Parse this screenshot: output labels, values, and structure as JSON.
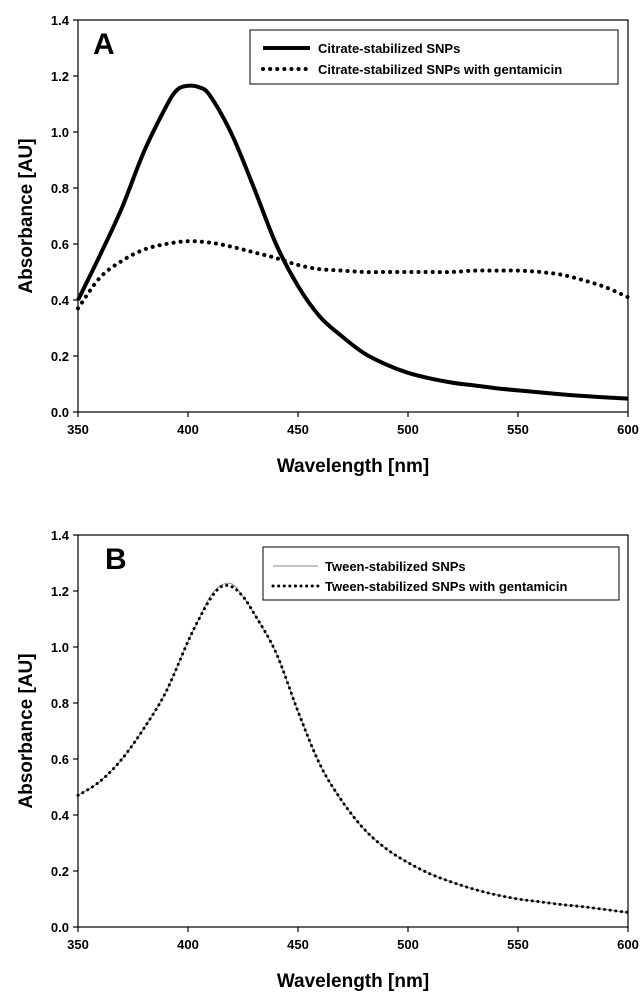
{
  "chart_data": [
    {
      "type": "line",
      "panel_label": "A",
      "xlabel": "Wavelength [nm]",
      "ylabel": "Absorbance [AU]",
      "xlim": [
        350,
        600
      ],
      "ylim": [
        0,
        1.4
      ],
      "xticks": [
        350,
        400,
        450,
        500,
        550,
        600
      ],
      "yticks": [
        0.0,
        0.2,
        0.4,
        0.6,
        0.8,
        1.0,
        1.2,
        1.4
      ],
      "xtick_labels": [
        "350",
        "400",
        "450",
        "500",
        "550",
        "600"
      ],
      "ytick_labels": [
        "0.0",
        "0.2",
        "0.4",
        "0.6",
        "0.8",
        "1.0",
        "1.2",
        "1.4"
      ],
      "grid": false,
      "legend_position": "top-right",
      "series": [
        {
          "name": "Citrate-stabilized SNPs",
          "style": "solid-thick",
          "color": "#000000",
          "x": [
            350,
            360,
            370,
            380,
            390,
            395,
            400,
            405,
            410,
            420,
            430,
            440,
            450,
            460,
            470,
            480,
            490,
            500,
            510,
            520,
            530,
            540,
            550,
            560,
            570,
            580,
            590,
            600
          ],
          "y": [
            0.4,
            0.56,
            0.73,
            0.93,
            1.09,
            1.15,
            1.165,
            1.16,
            1.13,
            0.99,
            0.8,
            0.6,
            0.45,
            0.34,
            0.27,
            0.21,
            0.17,
            0.14,
            0.12,
            0.105,
            0.095,
            0.085,
            0.077,
            0.07,
            0.063,
            0.057,
            0.052,
            0.048
          ]
        },
        {
          "name": "Citrate-stabilized SNPs with gentamicin",
          "style": "dotted",
          "color": "#000000",
          "x": [
            350,
            360,
            370,
            380,
            390,
            400,
            410,
            420,
            430,
            440,
            450,
            460,
            470,
            480,
            490,
            500,
            510,
            520,
            530,
            540,
            550,
            560,
            570,
            580,
            590,
            600
          ],
          "y": [
            0.37,
            0.48,
            0.54,
            0.58,
            0.6,
            0.61,
            0.605,
            0.59,
            0.57,
            0.55,
            0.525,
            0.51,
            0.505,
            0.5,
            0.5,
            0.5,
            0.5,
            0.5,
            0.505,
            0.505,
            0.505,
            0.5,
            0.49,
            0.47,
            0.445,
            0.41
          ]
        }
      ]
    },
    {
      "type": "line",
      "panel_label": "B",
      "xlabel": "Wavelength [nm]",
      "ylabel": "Absorbance [AU]",
      "xlim": [
        350,
        600
      ],
      "ylim": [
        0,
        1.4
      ],
      "xticks": [
        350,
        400,
        450,
        500,
        550,
        600
      ],
      "yticks": [
        0.0,
        0.2,
        0.4,
        0.6,
        0.8,
        1.0,
        1.2,
        1.4
      ],
      "xtick_labels": [
        "350",
        "400",
        "450",
        "500",
        "550",
        "600"
      ],
      "ytick_labels": [
        "0.0",
        "0.2",
        "0.4",
        "0.6",
        "0.8",
        "1.0",
        "1.2",
        "1.4"
      ],
      "grid": false,
      "legend_position": "top-right",
      "series": [
        {
          "name": "Tween-stabilized SNPs",
          "style": "solid-thin",
          "color": "#8a8a8a",
          "x": [
            350,
            360,
            370,
            380,
            390,
            400,
            405,
            410,
            415,
            420,
            425,
            430,
            440,
            450,
            460,
            470,
            480,
            490,
            500,
            510,
            520,
            530,
            540,
            550,
            560,
            570,
            580,
            590,
            600
          ],
          "y": [
            0.47,
            0.52,
            0.6,
            0.71,
            0.84,
            1.02,
            1.1,
            1.18,
            1.22,
            1.225,
            1.18,
            1.12,
            0.98,
            0.77,
            0.58,
            0.45,
            0.35,
            0.28,
            0.23,
            0.19,
            0.16,
            0.135,
            0.115,
            0.1,
            0.09,
            0.08,
            0.072,
            0.062,
            0.052
          ]
        },
        {
          "name": "Tween-stabilized SNPs with gentamicin",
          "style": "dotted",
          "color": "#000000",
          "x": [
            350,
            360,
            370,
            380,
            390,
            400,
            405,
            410,
            415,
            420,
            425,
            430,
            440,
            450,
            460,
            470,
            480,
            490,
            500,
            510,
            520,
            530,
            540,
            550,
            560,
            570,
            580,
            590,
            600
          ],
          "y": [
            0.47,
            0.52,
            0.6,
            0.71,
            0.84,
            1.02,
            1.1,
            1.17,
            1.215,
            1.215,
            1.18,
            1.12,
            0.98,
            0.77,
            0.58,
            0.45,
            0.35,
            0.28,
            0.23,
            0.19,
            0.16,
            0.135,
            0.115,
            0.1,
            0.09,
            0.08,
            0.072,
            0.062,
            0.052
          ]
        }
      ]
    }
  ]
}
